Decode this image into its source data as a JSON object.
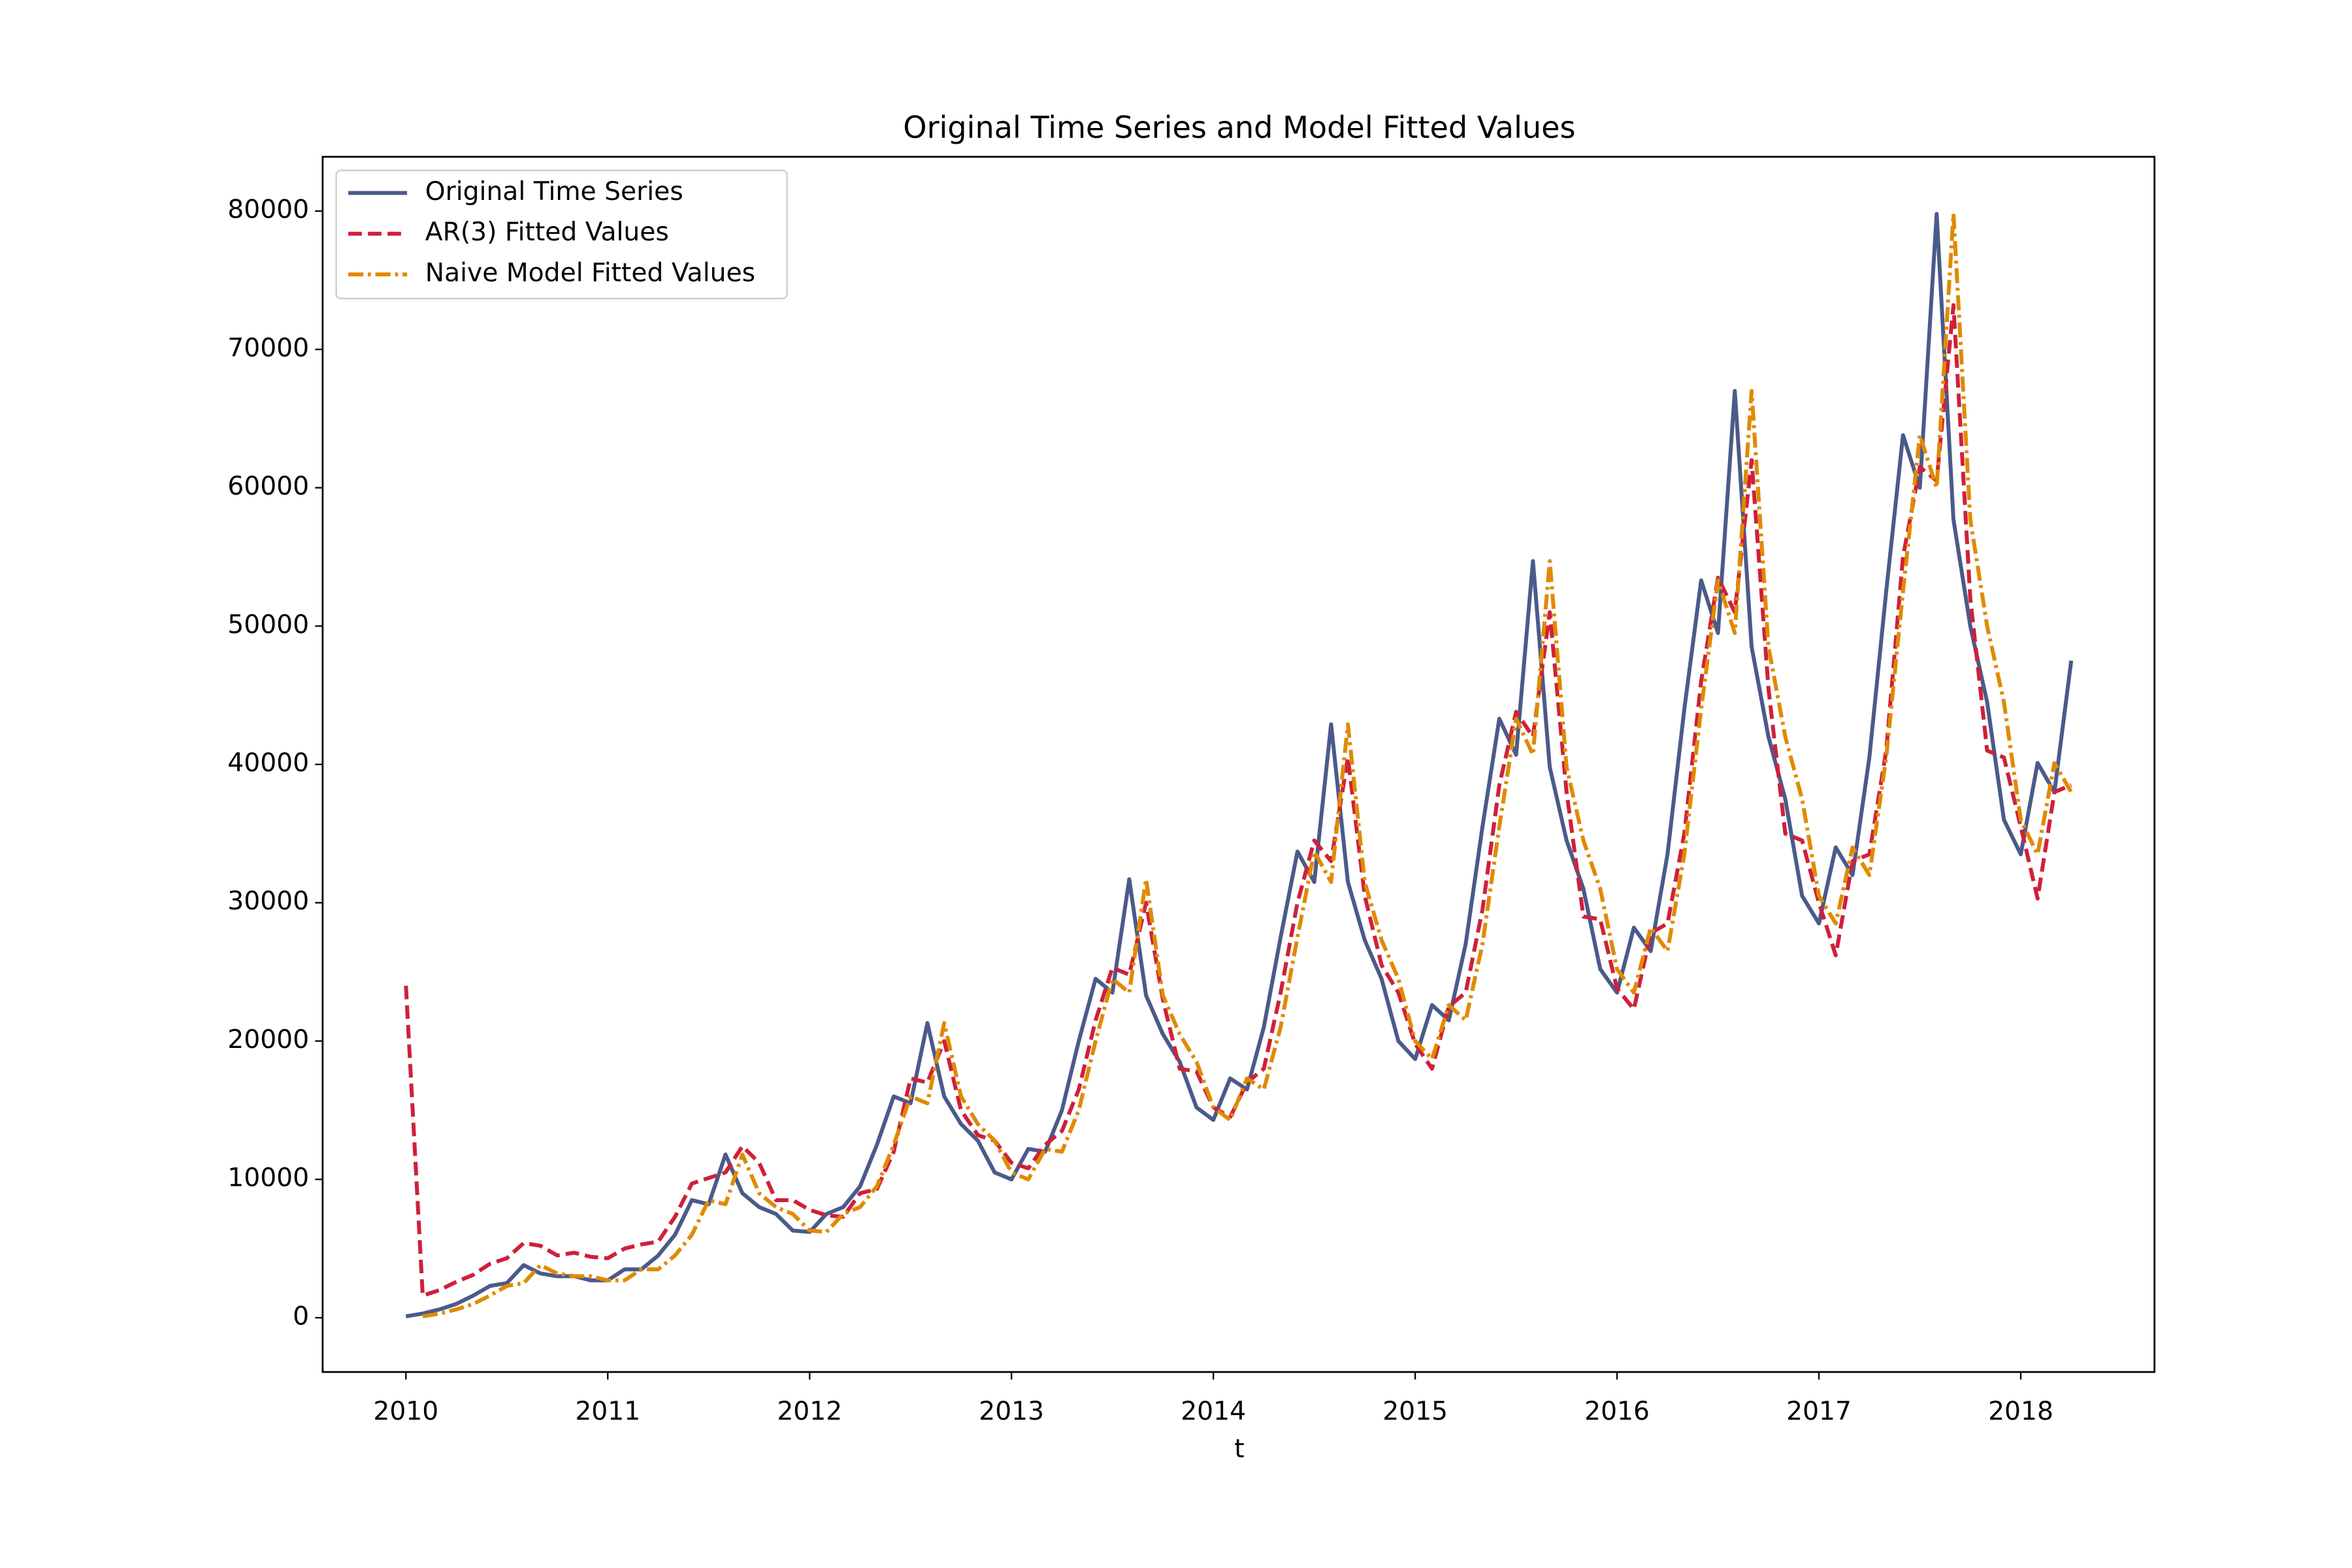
{
  "chart_data": {
    "type": "line",
    "title": "Original Time Series and Model Fitted Values",
    "x_label": "t",
    "x": [
      0,
      1,
      2,
      3,
      4,
      5,
      6,
      7,
      8,
      9,
      10,
      11,
      12,
      13,
      14,
      15,
      16,
      17,
      18,
      19,
      20,
      21,
      22,
      23,
      24,
      25,
      26,
      27,
      28,
      29,
      30,
      31,
      32,
      33,
      34,
      35,
      36,
      37,
      38,
      39,
      40,
      41,
      42,
      43,
      44,
      45,
      46,
      47,
      48,
      49,
      50,
      51,
      52,
      53,
      54,
      55,
      56,
      57,
      58,
      59,
      60,
      61,
      62,
      63,
      64,
      65,
      66,
      67,
      68,
      69,
      70,
      71,
      72,
      73,
      74,
      75,
      76,
      77,
      78,
      79,
      80,
      81,
      82,
      83,
      84,
      85,
      86,
      87,
      88,
      89,
      90,
      91,
      92,
      93,
      94,
      95,
      96,
      97,
      98,
      99
    ],
    "series": [
      {
        "name": "Original Time Series",
        "color": "#4a5a8a",
        "linestyle": "solid",
        "values": [
          100,
          300,
          600,
          1000,
          1600,
          2300,
          2500,
          3800,
          3200,
          3000,
          3000,
          2700,
          2700,
          3500,
          3500,
          4500,
          6000,
          8500,
          8200,
          11800,
          9000,
          8000,
          7500,
          6300,
          6200,
          7500,
          8000,
          9500,
          12500,
          16000,
          15500,
          21300,
          16000,
          14000,
          12800,
          10500,
          10000,
          12200,
          12000,
          15000,
          20000,
          24500,
          23500,
          31700,
          23300,
          20500,
          18500,
          15200,
          14300,
          17300,
          16500,
          21000,
          27500,
          33700,
          31500,
          42900,
          31500,
          27300,
          24500,
          20000,
          18700,
          22600,
          21500,
          27000,
          35500,
          43300,
          40700,
          54700,
          39800,
          34500,
          31000,
          25200,
          23500,
          28200,
          26500,
          33500,
          44000,
          53300,
          49500,
          67000,
          48500,
          42000,
          37500,
          30500,
          28500,
          34000,
          32000,
          40500,
          52500,
          63800,
          60000,
          79800,
          57700,
          50000,
          44500,
          36000,
          33500,
          40100,
          38000,
          47500
        ]
      },
      {
        "name": "AR(3) Fitted Values",
        "color": "#d0203a",
        "linestyle": "dashed",
        "values": [
          24000,
          1600,
          2000,
          2600,
          3100,
          3900,
          4300,
          5400,
          5200,
          4500,
          4700,
          4400,
          4300,
          5000,
          5300,
          5500,
          7300,
          9700,
          10100,
          10500,
          12400,
          11200,
          8500,
          8500,
          7800,
          7400,
          7300,
          9000,
          9300,
          12000,
          17300,
          17000,
          20000,
          15000,
          13200,
          12800,
          11200,
          10800,
          12500,
          13500,
          16500,
          21500,
          25300,
          24800,
          30000,
          23000,
          18000,
          17800,
          15200,
          14500,
          17000,
          18000,
          23500,
          30000,
          34500,
          33000,
          40500,
          30500,
          25500,
          23500,
          19800,
          18000,
          22500,
          23500,
          29500,
          38500,
          43800,
          42000,
          51000,
          38000,
          29000,
          28800,
          23800,
          22300,
          27800,
          28500,
          35000,
          46000,
          53500,
          51000,
          62000,
          45500,
          35000,
          34500,
          30000,
          26200,
          33000,
          33500,
          41000,
          55000,
          61500,
          60500,
          73200,
          52000,
          41000,
          40500,
          35500,
          30300,
          38000,
          38500
        ]
      },
      {
        "name": "Naive Model Fitted Values",
        "color": "#e08a00",
        "linestyle": "dashdot",
        "values": [
          null,
          100,
          300,
          600,
          1000,
          1600,
          2300,
          2500,
          3800,
          3200,
          3000,
          3000,
          2700,
          2700,
          3500,
          3500,
          4500,
          6000,
          8500,
          8200,
          11800,
          9000,
          8000,
          7500,
          6300,
          6200,
          7500,
          8000,
          9500,
          12500,
          16000,
          15500,
          21300,
          16000,
          14000,
          12800,
          10500,
          10000,
          12200,
          12000,
          15000,
          20000,
          24500,
          23500,
          31700,
          23300,
          20500,
          18500,
          15200,
          14300,
          17300,
          16500,
          21000,
          27500,
          33700,
          31500,
          42900,
          31500,
          27300,
          24500,
          20000,
          18700,
          22600,
          21500,
          27000,
          35500,
          43300,
          40700,
          54700,
          39800,
          34500,
          31000,
          25200,
          23500,
          28200,
          26500,
          33500,
          44000,
          53300,
          49500,
          67000,
          48500,
          42000,
          37500,
          30500,
          28500,
          34000,
          32000,
          40500,
          52500,
          63800,
          60000,
          79800,
          57700,
          50000,
          44500,
          36000,
          33500,
          40100,
          38000
        ]
      }
    ],
    "xlim": [
      -4.95,
      103.95
    ],
    "xticks": [
      {
        "value": 0,
        "label": "2010"
      },
      {
        "value": 12,
        "label": "2011"
      },
      {
        "value": 24,
        "label": "2012"
      },
      {
        "value": 36,
        "label": "2013"
      },
      {
        "value": 48,
        "label": "2014"
      },
      {
        "value": 60,
        "label": "2015"
      },
      {
        "value": 72,
        "label": "2016"
      },
      {
        "value": 84,
        "label": "2017"
      },
      {
        "value": 96,
        "label": "2018"
      }
    ],
    "ylim": [
      -3924,
      83924
    ],
    "yticks": [
      0,
      10000,
      20000,
      30000,
      40000,
      50000,
      60000,
      70000,
      80000
    ],
    "legend": "upper left",
    "grid": false
  }
}
